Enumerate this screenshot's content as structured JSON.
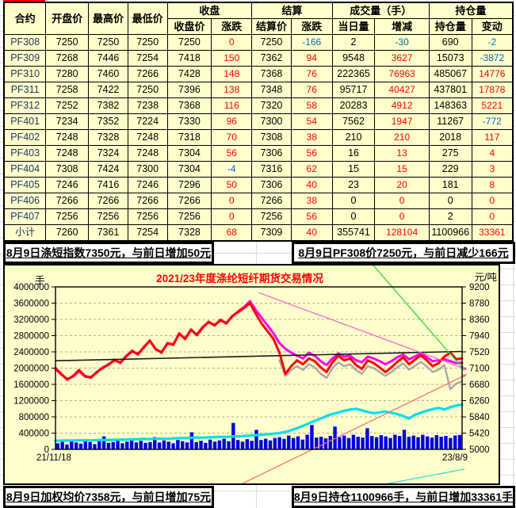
{
  "colors": {
    "cell_bg": "#ffffcc",
    "red_text": "#ff0000",
    "blue_text": "#0066cc",
    "contract_text": "#1f3864",
    "accent_line": "#ff0000"
  },
  "table": {
    "header": {
      "contract": "合约",
      "open": "开盘价",
      "high": "最高价",
      "low": "最低价",
      "close_group": "收盘",
      "close": "收盘价",
      "close_chg": "涨跌",
      "settle_group": "结算",
      "settle": "结算价",
      "settle_chg": "涨跌",
      "volume_group": "成交量（手）",
      "volume": "当日量",
      "volume_chg": "增减",
      "oi_group": "持仓量",
      "oi": "持仓量",
      "oi_chg": "变动"
    },
    "rows": [
      [
        "PF308",
        "7250",
        "7250",
        "7250",
        "7250",
        "0",
        "7250",
        "-166",
        "2",
        "-30",
        "690",
        "-2"
      ],
      [
        "PF309",
        "7268",
        "7446",
        "7254",
        "7418",
        "150",
        "7362",
        "94",
        "9548",
        "3627",
        "15073",
        "-3872"
      ],
      [
        "PF310",
        "7280",
        "7460",
        "7266",
        "7428",
        "148",
        "7368",
        "76",
        "222365",
        "76963",
        "485067",
        "14776"
      ],
      [
        "PF311",
        "7258",
        "7422",
        "7250",
        "7396",
        "138",
        "7348",
        "76",
        "95717",
        "40427",
        "437801",
        "17878"
      ],
      [
        "PF312",
        "7252",
        "7382",
        "7238",
        "7368",
        "116",
        "7320",
        "58",
        "20283",
        "4912",
        "148363",
        "5221"
      ],
      [
        "PF401",
        "7234",
        "7352",
        "7224",
        "7330",
        "96",
        "7300",
        "54",
        "7562",
        "1947",
        "11267",
        "-772"
      ],
      [
        "PF402",
        "7248",
        "7328",
        "7248",
        "7318",
        "70",
        "7308",
        "38",
        "210",
        "210",
        "2018",
        "117"
      ],
      [
        "PF403",
        "7248",
        "7324",
        "7248",
        "7304",
        "56",
        "7306",
        "56",
        "16",
        "13",
        "275",
        "4"
      ],
      [
        "PF404",
        "7308",
        "7424",
        "7300",
        "7304",
        "-4",
        "7316",
        "62",
        "15",
        "15",
        "229",
        "3"
      ],
      [
        "PF405",
        "7246",
        "7416",
        "7246",
        "7296",
        "50",
        "7306",
        "40",
        "23",
        "20",
        "181",
        "8"
      ],
      [
        "PF406",
        "7266",
        "7266",
        "7266",
        "7266",
        "0",
        "7266",
        "38",
        "0",
        "0",
        "0",
        "0"
      ],
      [
        "PF407",
        "7256",
        "7256",
        "7256",
        "7256",
        "0",
        "7256",
        "56",
        "0",
        "0",
        "2",
        "0"
      ],
      [
        "小计",
        "7260",
        "7361",
        "7254",
        "7328",
        "68",
        "7309",
        "40",
        "355741",
        "128104",
        "1100966",
        "33361"
      ]
    ]
  },
  "banners": {
    "mid_left": "8月9日涤短指数7350元，与前日增加50元",
    "mid_right": "8月9日PF308价7250元，与前日减少166元",
    "bottom_left": "8月9日加权均价7358元，与前日增加75元",
    "bottom_right": "8月9日持仓1100966手，与前日增加33361手"
  },
  "chart_data": {
    "type": "line+bar",
    "title": "2021/23年度涤纶短纤期货交易情况",
    "x_start_label": "21/11/18",
    "x_end_label": "23/8/9",
    "left_axis": {
      "label": "手",
      "min": 0,
      "max": 4000000,
      "step": 400000
    },
    "right_axis": {
      "label": "元/吨",
      "min": 5000,
      "max": 9200,
      "step": 420
    },
    "grid": "horizontal-dashed",
    "series": [
      {
        "name": "daily-volume-bars",
        "type": "bar",
        "axis": "left",
        "color": "#0000dd",
        "values": [
          150000,
          190000,
          120000,
          210000,
          170000,
          140000,
          230000,
          180000,
          130000,
          200000,
          320000,
          160000,
          180000,
          220000,
          150000,
          190000,
          240000,
          170000,
          210000,
          160000,
          180000,
          300000,
          170000,
          220000,
          190000,
          150000,
          230000,
          200000,
          170000,
          420000,
          180000,
          210000,
          160000,
          240000,
          190000,
          220000,
          260000,
          200000,
          650000,
          230000,
          190000,
          250000,
          210000,
          480000,
          230000,
          260000,
          220000,
          280000,
          300000,
          260000,
          340000,
          280000,
          320000,
          240000,
          360000,
          600000,
          290000,
          310000,
          270000,
          330000,
          560000,
          300000,
          340000,
          280000,
          360000,
          310000,
          290000,
          520000,
          330000,
          300000,
          350000,
          320000,
          280000,
          360000,
          330000,
          480000,
          310000,
          340000,
          300000,
          360000,
          320000,
          290000,
          350000,
          310000,
          330000,
          280000,
          340000,
          356000
        ]
      },
      {
        "name": "open-interest-line",
        "type": "line",
        "axis": "left",
        "color": "#00e0e8",
        "width": 3.2,
        "values": [
          210000,
          215000,
          220000,
          218000,
          222000,
          225000,
          220000,
          228000,
          232000,
          230000,
          235000,
          240000,
          238000,
          245000,
          250000,
          255000,
          252000,
          260000,
          265000,
          262000,
          270000,
          278000,
          275000,
          285000,
          290000,
          288000,
          295000,
          300000,
          310000,
          305000,
          315000,
          320000,
          330000,
          340000,
          350000,
          360000,
          370000,
          385000,
          400000,
          430000,
          470000,
          520000,
          580000,
          640000,
          700000,
          760000,
          820000,
          870000,
          910000,
          950000,
          980000,
          1000000,
          960000,
          920000,
          890000,
          910000,
          930000,
          900000,
          870000,
          820000,
          760000,
          850000,
          900000,
          950000,
          990000,
          1020000,
          980000,
          1040000,
          1080000,
          1100000
        ]
      },
      {
        "name": "gray-price-line",
        "type": "line",
        "axis": "right",
        "color": "#a8a8a8",
        "width": 2.4,
        "values": [
          null,
          null,
          null,
          null,
          null,
          null,
          null,
          null,
          null,
          null,
          null,
          null,
          null,
          null,
          null,
          null,
          null,
          null,
          null,
          null,
          null,
          null,
          null,
          null,
          null,
          null,
          null,
          null,
          null,
          null,
          null,
          null,
          null,
          null,
          null,
          null,
          null,
          null,
          7300,
          6900,
          7050,
          7150,
          7050,
          7200,
          7120,
          6950,
          6850,
          7100,
          7250,
          7150,
          7200,
          7050,
          6950,
          7150,
          7100,
          7000,
          6900,
          7000,
          7120,
          7220,
          7060,
          7160,
          7260,
          7140,
          7000,
          7060,
          7180,
          6550,
          6700,
          6760
        ]
      },
      {
        "name": "magenta-price-line",
        "type": "line",
        "axis": "right",
        "color": "#ff00ee",
        "width": 3,
        "values": [
          7080,
          6930,
          6820,
          6880,
          7020,
          6880,
          6870,
          6980,
          7120,
          7180,
          7320,
          7230,
          7420,
          7530,
          7470,
          7630,
          7820,
          7580,
          7520,
          7730,
          7720,
          7980,
          7870,
          8080,
          7970,
          8170,
          8280,
          8220,
          8330,
          8270,
          8430,
          8570,
          8680,
          8830,
          8600,
          8400,
          8200,
          8000,
          7750,
          7600,
          7500,
          7420,
          7350,
          7500,
          7420,
          7280,
          7180,
          7350,
          7480,
          7400,
          7420,
          7300,
          7250,
          7400,
          7350,
          7280,
          7200,
          7280,
          7380,
          7450,
          7330,
          7400,
          7480,
          7380,
          7280,
          7300,
          7330,
          7280,
          7230,
          7240
        ]
      },
      {
        "name": "red-price-line",
        "type": "line",
        "axis": "right",
        "color": "#ff0000",
        "width": 3,
        "values": [
          7100,
          6950,
          6800,
          6900,
          7050,
          6900,
          6850,
          7000,
          7100,
          7200,
          7300,
          7250,
          7400,
          7550,
          7450,
          7650,
          7800,
          7600,
          7500,
          7750,
          7700,
          8000,
          7850,
          8100,
          7950,
          8150,
          8300,
          8200,
          8350,
          8250,
          8450,
          8550,
          8650,
          8780,
          8500,
          8250,
          8050,
          7850,
          7500,
          6950,
          7150,
          7300,
          7200,
          7350,
          7280,
          7120,
          7000,
          7250,
          7420,
          7300,
          7350,
          7180,
          7080,
          7300,
          7230,
          7120,
          7000,
          7120,
          7260,
          7380,
          7200,
          7320,
          7430,
          7300,
          7150,
          7230,
          7400,
          7500,
          7330,
          7350
        ]
      }
    ],
    "trend_lines": [
      {
        "name": "black-regression-line",
        "color": "#1a1a1a",
        "width": 1.6,
        "x1": 0,
        "v1": 7290,
        "x2": 1.0,
        "v2": 7530,
        "arrow": false
      },
      {
        "name": "pink-trend-line",
        "color": "#ff5fd2",
        "width": 1.2,
        "x1": 0.5,
        "v1": 9050,
        "x2": 1.012,
        "v2": 7060,
        "arrow": true
      },
      {
        "name": "green-trend-line",
        "color": "#37dd37",
        "width": 1.4,
        "x1": 0.77,
        "v1": 9900,
        "x2": 1.006,
        "v2": 7040,
        "arrow": true
      },
      {
        "name": "red-trend-line",
        "color": "#ff6a6a",
        "width": 1.2,
        "x1": 0.444,
        "v1": 4036,
        "x2": 1.012,
        "v2": 6940,
        "arrow": true
      },
      {
        "name": "cyan-trend-line",
        "color": "#2ad8d8",
        "width": 1.2,
        "x1": 0.7,
        "v1": 3880,
        "x2": 1.006,
        "v2": 4490,
        "arrow": false
      }
    ]
  }
}
